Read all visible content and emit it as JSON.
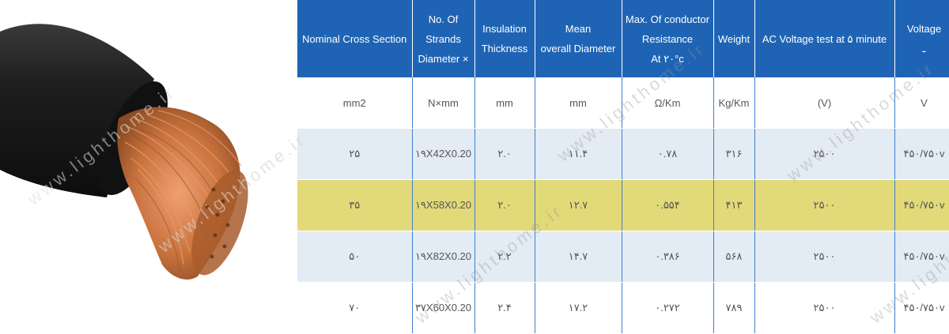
{
  "watermark": "www.lighthome.ir",
  "headers": [
    [
      "Nominal Cross Section"
    ],
    [
      "No. Of",
      "Strands",
      "Diameter ×"
    ],
    [
      "Insulation",
      "Thickness"
    ],
    [
      "Mean",
      "overall Diameter"
    ],
    [
      "Max. Of conductor",
      "Resistance",
      "At ۲۰°c"
    ],
    [
      "Weight"
    ],
    [
      "AC Voltage test at ۵ minute"
    ],
    [
      "Voltage",
      "ـ"
    ]
  ],
  "units": [
    "mm2",
    "N×mm",
    "mm",
    "mm",
    "Ω/Km",
    "Kg/Km",
    "(V)",
    "V"
  ],
  "rows": [
    [
      "۲۵",
      "۱۹X42X0.20",
      "۲.۰",
      "۱۱.۴",
      "۰.۷۸",
      "۳۱۶",
      "۲۵۰۰",
      "۴۵۰/۷۵۰v"
    ],
    [
      "۳۵",
      "۱۹X58X0.20",
      "۲.۰",
      "۱۲.۷",
      "۰.۵۵۴",
      "۴۱۳",
      "۲۵۰۰",
      "۴۵۰/۷۵۰v"
    ],
    [
      "۵۰",
      "۱۹X82X0.20",
      "۲.۲",
      "۱۴.۷",
      "۰.۳۸۶",
      "۵۶۸",
      "۲۵۰۰",
      "۴۵۰/۷۵۰v"
    ],
    [
      "۷۰",
      "۳۷X60X0.20",
      "۲.۴",
      "۱۷.۲",
      "۰.۲۷۲",
      "۷۸۹",
      "۲۵۰۰",
      "۴۵۰/۷۵۰v"
    ]
  ],
  "row_styles": [
    "r-blue",
    "r-yellow",
    "r-blue",
    "r-white"
  ],
  "colors": {
    "header_bg": "#1f64b4",
    "header_text": "#ffffff",
    "row_blue": "#e3ebf5",
    "row_yellow": "#e2d979",
    "cable_jacket": "#1c1c1c",
    "copper": "#c8723e"
  }
}
